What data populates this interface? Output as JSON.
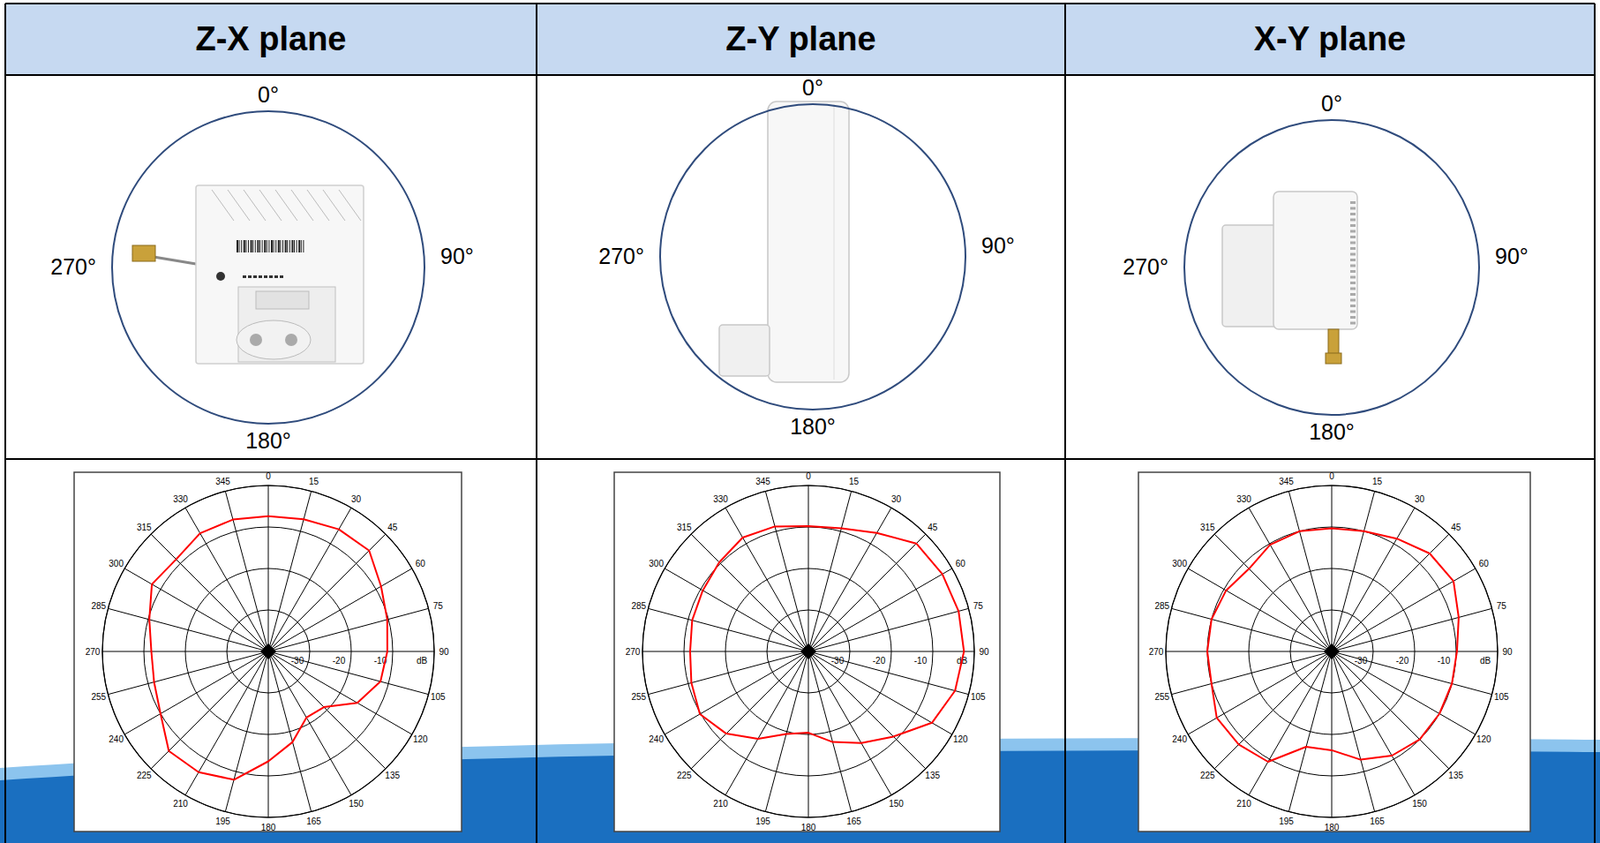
{
  "table": {
    "columns": [
      {
        "title": "Z-X plane",
        "angle_labels": [
          "0°",
          "90°",
          "180°",
          "270°"
        ]
      },
      {
        "title": "Z-Y plane",
        "angle_labels": [
          "0°",
          "90°",
          "180°",
          "270°"
        ]
      },
      {
        "title": "X-Y plane",
        "angle_labels": [
          "0°",
          "90°",
          "180°",
          "270°"
        ]
      }
    ]
  },
  "chart_data": [
    {
      "type": "polar",
      "color": "#ff0000",
      "grid": true,
      "xlim": [
        0,
        360
      ],
      "ylim": [
        -40,
        0
      ],
      "xticks": [
        0,
        15,
        30,
        45,
        60,
        75,
        90,
        105,
        120,
        135,
        150,
        165,
        180,
        195,
        210,
        225,
        240,
        255,
        270,
        285,
        300,
        315,
        330,
        345
      ],
      "yticks": [
        -30,
        -20,
        -10,
        {
          "value": 0,
          "label": "dB"
        }
      ],
      "x": [
        0,
        15,
        30,
        45,
        60,
        75,
        90,
        105,
        120,
        135,
        150,
        165,
        180,
        195,
        210,
        225,
        240,
        255,
        270,
        285,
        300,
        315,
        330,
        345
      ],
      "values": [
        -7.4,
        -7,
        -6,
        -5.6,
        -8.6,
        -10.3,
        -11.3,
        -12,
        -15.2,
        -21,
        -21.6,
        -17.4,
        -13.5,
        -8,
        -6.4,
        -6.1,
        -10,
        -11.5,
        -11.8,
        -10.3,
        -7.6,
        -8.6,
        -7.1,
        -7.1
      ]
    },
    {
      "type": "polar",
      "color": "#ff0000",
      "grid": true,
      "xlim": [
        0,
        360
      ],
      "ylim": [
        -40,
        0
      ],
      "xticks": [
        0,
        15,
        30,
        45,
        60,
        75,
        90,
        105,
        120,
        135,
        150,
        165,
        180,
        195,
        210,
        225,
        240,
        255,
        270,
        285,
        300,
        315,
        330,
        345
      ],
      "yticks": [
        -30,
        -20,
        -10,
        {
          "value": 0,
          "label": "dB"
        }
      ],
      "x": [
        0,
        15,
        30,
        45,
        60,
        75,
        90,
        105,
        120,
        135,
        150,
        165,
        180,
        195,
        210,
        225,
        240,
        255,
        270,
        285,
        300,
        315,
        330,
        345
      ],
      "values": [
        -9.8,
        -9.3,
        -7,
        -3.2,
        -2.7,
        -2.5,
        -2.5,
        -3.4,
        -5.6,
        -11,
        -14.5,
        -17.4,
        -20.4,
        -19.4,
        -15.7,
        -12,
        -9.8,
        -10.8,
        -11.5,
        -11,
        -10.6,
        -9.6,
        -8.3,
        -8.8
      ]
    },
    {
      "type": "polar",
      "color": "#ff0000",
      "grid": true,
      "xlim": [
        0,
        360
      ],
      "ylim": [
        -40,
        0
      ],
      "xticks": [
        0,
        15,
        30,
        45,
        60,
        75,
        90,
        105,
        120,
        135,
        150,
        165,
        180,
        195,
        210,
        225,
        240,
        255,
        270,
        285,
        300,
        315,
        330,
        345
      ],
      "yticks": [
        -30,
        -20,
        -10,
        {
          "value": 0,
          "label": "dB"
        }
      ],
      "x": [
        0,
        15,
        30,
        45,
        60,
        75,
        90,
        105,
        120,
        135,
        150,
        165,
        180,
        195,
        210,
        225,
        240,
        255,
        270,
        285,
        300,
        315,
        330,
        345
      ],
      "values": [
        -10.3,
        -10,
        -8.6,
        -6.6,
        -6.1,
        -8.3,
        -9.8,
        -10,
        -10,
        -10,
        -11,
        -13,
        -16.2,
        -16.2,
        -9.3,
        -8.3,
        -8,
        -10,
        -10,
        -10,
        -10.6,
        -11.8,
        -10.3,
        -10
      ]
    }
  ]
}
